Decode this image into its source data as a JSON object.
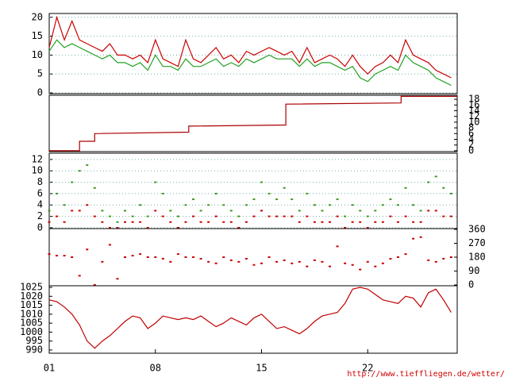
{
  "credit": "http://www.tieffliegen.de/wetter/",
  "chart_data": [
    {
      "type": "line",
      "yaxis": "left",
      "grid": true,
      "xlim": [
        1,
        27.9
      ],
      "ylim": [
        -0.2,
        21
      ],
      "yticks": [
        0,
        5,
        10,
        15,
        20
      ],
      "x": [
        1,
        1.5,
        2,
        2.5,
        3,
        3.5,
        4,
        4.5,
        5,
        5.5,
        6,
        6.5,
        7,
        7.5,
        8,
        8.5,
        9,
        9.5,
        10,
        10.5,
        11,
        11.5,
        12,
        12.5,
        13,
        13.5,
        14,
        14.5,
        15,
        15.5,
        16,
        16.5,
        17,
        17.5,
        18,
        18.5,
        19,
        19.5,
        20,
        20.5,
        21,
        21.5,
        22,
        22.5,
        23,
        23.5,
        24,
        24.5,
        25,
        25.5,
        26,
        26.5,
        27,
        27.5
      ],
      "series": [
        {
          "color": "#cc0000",
          "values": [
            12,
            20,
            14,
            19,
            14,
            13,
            12,
            11,
            13,
            10,
            10,
            9,
            10,
            8,
            14,
            9,
            8,
            7,
            14,
            9,
            8,
            10,
            12,
            9,
            10,
            8,
            11,
            10,
            11,
            12,
            11,
            10,
            11,
            8,
            12,
            8,
            9,
            10,
            9,
            7,
            10,
            7,
            5,
            7,
            8,
            10,
            8,
            14,
            10,
            9,
            8,
            6,
            5,
            4
          ]
        },
        {
          "color": "#22a022",
          "values": [
            11,
            14,
            12,
            13,
            12,
            11,
            10,
            9,
            10,
            8,
            8,
            7,
            8,
            6,
            10,
            7,
            7,
            6,
            9,
            7,
            7,
            8,
            9,
            7,
            8,
            7,
            9,
            8,
            9,
            10,
            9,
            9,
            9,
            7,
            9,
            7,
            8,
            8,
            7,
            6,
            7,
            4,
            3,
            5,
            6,
            7,
            6,
            10,
            8,
            7,
            6,
            4,
            3,
            2
          ]
        }
      ]
    },
    {
      "type": "line",
      "yaxis": "right",
      "grid": false,
      "xlim": [
        1,
        27.9
      ],
      "ylim": [
        -0.3,
        19.4
      ],
      "yticks": [
        0,
        2,
        4,
        6,
        8,
        10,
        12,
        14,
        16,
        18
      ],
      "x": [
        1,
        3,
        3,
        4,
        4,
        10.2,
        10.2,
        16.6,
        16.6,
        24.2,
        24.2,
        27.9
      ],
      "series": [
        {
          "color": "#aa0000",
          "values": [
            0,
            0,
            3.3,
            3.3,
            6,
            6.5,
            8.6,
            9,
            16.3,
            16.7,
            19,
            19
          ]
        }
      ]
    },
    {
      "type": "scatter",
      "yaxis": "left",
      "grid": true,
      "xlim": [
        1,
        27.9
      ],
      "ylim": [
        -0.15,
        13.1
      ],
      "yticks": [
        0,
        2,
        4,
        6,
        8,
        10,
        12
      ],
      "x": [
        1,
        1.5,
        2,
        2.5,
        3,
        3.5,
        4,
        4.5,
        5,
        5.5,
        6,
        6.5,
        7,
        7.5,
        8,
        8.5,
        9,
        9.5,
        10,
        10.5,
        11,
        11.5,
        12,
        12.5,
        13,
        13.5,
        14,
        14.5,
        15,
        15.5,
        16,
        16.5,
        17,
        17.5,
        18,
        18.5,
        19,
        19.5,
        20,
        20.5,
        21,
        21.5,
        22,
        22.5,
        23,
        23.5,
        24,
        24.5,
        25,
        25.5,
        26,
        26.5,
        27,
        27.5
      ],
      "series": [
        {
          "color": "#3c9a1e",
          "values": [
            3,
            6,
            4,
            8,
            10,
            11,
            7,
            3,
            2,
            1,
            3,
            2,
            4,
            2,
            8,
            6,
            3,
            2,
            4,
            5,
            3,
            4,
            6,
            4,
            3,
            2,
            4,
            5,
            8,
            6,
            5,
            7,
            5,
            3,
            6,
            4,
            3,
            4,
            5,
            2,
            4,
            3,
            2,
            3,
            4,
            5,
            4,
            7,
            4,
            3,
            8,
            9,
            7,
            6
          ]
        },
        {
          "color": "#cc0000",
          "values": [
            1,
            2,
            1,
            3,
            3,
            4,
            2,
            1,
            0,
            0,
            1,
            1,
            1,
            0,
            3,
            2,
            1,
            0,
            1,
            2,
            1,
            1,
            2,
            1,
            1,
            0,
            1,
            2,
            3,
            2,
            2,
            2,
            2,
            1,
            2,
            1,
            1,
            1,
            2,
            0,
            1,
            1,
            0,
            1,
            1,
            2,
            1,
            2,
            1,
            1,
            3,
            3,
            2,
            2
          ]
        }
      ]
    },
    {
      "type": "scatter",
      "yaxis": "right",
      "grid": false,
      "xlim": [
        1,
        27.9
      ],
      "ylim": [
        -5,
        365
      ],
      "yticks": [
        0,
        90,
        180,
        270,
        360
      ],
      "x": [
        1,
        1.5,
        2,
        2.5,
        3,
        3.5,
        4,
        4.5,
        5,
        5.5,
        6,
        6.5,
        7,
        7.5,
        8,
        8.5,
        9,
        9.5,
        10,
        10.5,
        11,
        11.5,
        12,
        12.5,
        13,
        13.5,
        14,
        14.5,
        15,
        15.5,
        16,
        16.5,
        17,
        17.5,
        18,
        18.5,
        19,
        19.5,
        20,
        20.5,
        21,
        21.5,
        22,
        22.5,
        23,
        23.5,
        24,
        24.5,
        25,
        25.5,
        26,
        26.5,
        27,
        27.5
      ],
      "series": [
        {
          "color": "#cc0000",
          "values": [
            200,
            190,
            190,
            180,
            60,
            230,
            0,
            150,
            260,
            40,
            180,
            190,
            200,
            180,
            180,
            170,
            150,
            200,
            180,
            180,
            170,
            150,
            140,
            180,
            160,
            150,
            170,
            130,
            140,
            180,
            150,
            160,
            140,
            150,
            120,
            160,
            150,
            120,
            250,
            140,
            130,
            100,
            150,
            120,
            140,
            170,
            180,
            200,
            300,
            310,
            160,
            150,
            170,
            180
          ]
        }
      ]
    },
    {
      "type": "line",
      "yaxis": "left",
      "grid": false,
      "xlim": [
        1,
        27.9
      ],
      "ylim": [
        988.2,
        1025.9
      ],
      "yticks": [
        990,
        995,
        1000,
        1005,
        1010,
        1015,
        1020,
        1025
      ],
      "xticks": [
        {
          "value": 1,
          "label": "01"
        },
        {
          "value": 8,
          "label": "08"
        },
        {
          "value": 15,
          "label": "15"
        },
        {
          "value": 22,
          "label": "22"
        }
      ],
      "x": [
        1,
        1.5,
        2,
        2.5,
        3,
        3.5,
        4,
        4.5,
        5,
        5.5,
        6,
        6.5,
        7,
        7.5,
        8,
        8.5,
        9,
        9.5,
        10,
        10.5,
        11,
        11.5,
        12,
        12.5,
        13,
        13.5,
        14,
        14.5,
        15,
        15.5,
        16,
        16.5,
        17,
        17.5,
        18,
        18.5,
        19,
        19.5,
        20,
        20.5,
        21,
        21.5,
        22,
        22.5,
        23,
        23.5,
        24,
        24.5,
        25,
        25.5,
        26,
        26.5,
        27,
        27.5
      ],
      "series": [
        {
          "color": "#c00000",
          "values": [
            1018,
            1017,
            1014,
            1010,
            1004,
            995,
            991,
            995,
            998,
            1002,
            1006,
            1009,
            1008,
            1002,
            1005,
            1009,
            1008,
            1007,
            1008,
            1007,
            1009,
            1006,
            1003,
            1005,
            1008,
            1006,
            1004,
            1008,
            1010,
            1006,
            1002,
            1003,
            1001,
            999,
            1002,
            1006,
            1009,
            1010,
            1011,
            1016,
            1024,
            1025,
            1024,
            1021,
            1018,
            1017,
            1016,
            1020,
            1019,
            1014,
            1022,
            1024,
            1018,
            1011
          ]
        }
      ]
    }
  ]
}
